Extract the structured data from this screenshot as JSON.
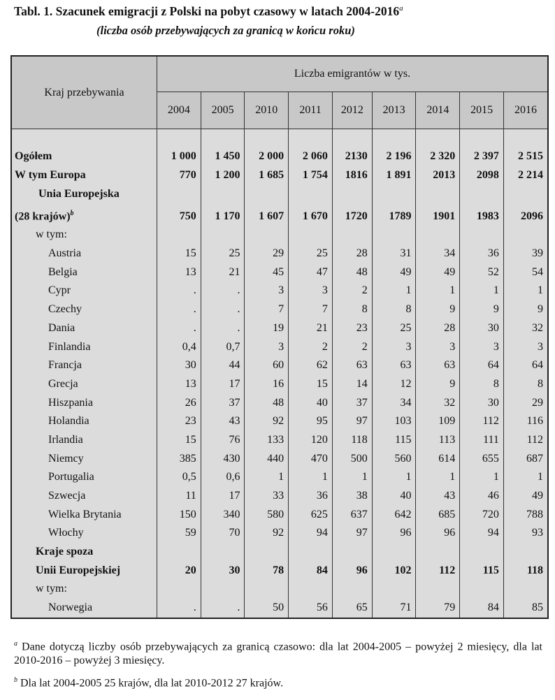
{
  "title": "Tabl. 1. Szacunek emigracji z Polski na pobyt czasowy w latach 2004-2016",
  "title_note": "a",
  "subtitle": "(liczba osób przebywających za granicą w końcu roku)",
  "header": {
    "row_label": "Kraj przebywania",
    "group_label": "Liczba emigrantów w tys.",
    "years": [
      "2004",
      "2005",
      "2010",
      "2011",
      "2012",
      "2013",
      "2014",
      "2015",
      "2016"
    ]
  },
  "rows": [
    {
      "label": "Ogółem",
      "bold": true,
      "indent": 0,
      "values": [
        "1 000",
        "1 450",
        "2 000",
        "2 060",
        "2130",
        "2 196",
        "2 320",
        "2 397",
        "2 515"
      ]
    },
    {
      "label": "W tym Europa",
      "bold": true,
      "indent": 0,
      "values": [
        "770",
        "1 200",
        "1 685",
        "1 754",
        "1816",
        "1 891",
        "2013",
        "2098",
        "2 214"
      ]
    },
    {
      "label": "Unia Europejska",
      "bold": true,
      "indent": 1,
      "values": []
    },
    {
      "label": "(28 krajów)",
      "note": "b",
      "bold": true,
      "indent": 0,
      "tall": true,
      "values": [
        "750",
        "1 170",
        "1 607",
        "1 670",
        "1720",
        "1789",
        "1901",
        "1983",
        "2096"
      ]
    },
    {
      "label": "w tym:",
      "indent": 2,
      "values": []
    },
    {
      "label": "Austria",
      "indent": 3,
      "values": [
        "15",
        "25",
        "29",
        "25",
        "28",
        "31",
        "34",
        "36",
        "39"
      ]
    },
    {
      "label": "Belgia",
      "indent": 3,
      "values": [
        "13",
        "21",
        "45",
        "47",
        "48",
        "49",
        "49",
        "52",
        "54"
      ]
    },
    {
      "label": "Cypr",
      "indent": 3,
      "values": [
        ".",
        ".",
        "3",
        "3",
        "2",
        "1",
        "1",
        "1",
        "1"
      ]
    },
    {
      "label": "Czechy",
      "indent": 3,
      "values": [
        ".",
        ".",
        "7",
        "7",
        "8",
        "8",
        "9",
        "9",
        "9"
      ]
    },
    {
      "label": "Dania",
      "indent": 3,
      "values": [
        ".",
        ".",
        "19",
        "21",
        "23",
        "25",
        "28",
        "30",
        "32"
      ]
    },
    {
      "label": "Finlandia",
      "indent": 3,
      "values": [
        "0,4",
        "0,7",
        "3",
        "2",
        "2",
        "3",
        "3",
        "3",
        "3"
      ]
    },
    {
      "label": "Francja",
      "indent": 3,
      "values": [
        "30",
        "44",
        "60",
        "62",
        "63",
        "63",
        "63",
        "64",
        "64"
      ]
    },
    {
      "label": "Grecja",
      "indent": 3,
      "values": [
        "13",
        "17",
        "16",
        "15",
        "14",
        "12",
        "9",
        "8",
        "8"
      ]
    },
    {
      "label": "Hiszpania",
      "indent": 3,
      "values": [
        "26",
        "37",
        "48",
        "40",
        "37",
        "34",
        "32",
        "30",
        "29"
      ]
    },
    {
      "label": "Holandia",
      "indent": 3,
      "values": [
        "23",
        "43",
        "92",
        "95",
        "97",
        "103",
        "109",
        "112",
        "116"
      ]
    },
    {
      "label": "Irlandia",
      "indent": 3,
      "values": [
        "15",
        "76",
        "133",
        "120",
        "118",
        "115",
        "113",
        "111",
        "112"
      ]
    },
    {
      "label": "Niemcy",
      "indent": 3,
      "values": [
        "385",
        "430",
        "440",
        "470",
        "500",
        "560",
        "614",
        "655",
        "687"
      ]
    },
    {
      "label": "Portugalia",
      "indent": 3,
      "values": [
        "0,5",
        "0,6",
        "1",
        "1",
        "1",
        "1",
        "1",
        "1",
        "1"
      ]
    },
    {
      "label": "Szwecja",
      "indent": 3,
      "values": [
        "11",
        "17",
        "33",
        "36",
        "38",
        "40",
        "43",
        "46",
        "49"
      ]
    },
    {
      "label": "Wielka Brytania",
      "indent": 3,
      "values": [
        "150",
        "340",
        "580",
        "625",
        "637",
        "642",
        "685",
        "720",
        "788"
      ]
    },
    {
      "label": "Włochy",
      "indent": 3,
      "values": [
        "59",
        "70",
        "92",
        "94",
        "97",
        "96",
        "96",
        "94",
        "93"
      ]
    },
    {
      "label": "Kraje spoza",
      "bold": true,
      "indent": 2,
      "values": []
    },
    {
      "label": "Unii Europejskiej",
      "bold": true,
      "indent": 2,
      "values": [
        "20",
        "30",
        "78",
        "84",
        "96",
        "102",
        "112",
        "115",
        "118"
      ]
    },
    {
      "label": "w tym:",
      "indent": 2,
      "values": []
    },
    {
      "label": "Norwegia",
      "indent": 3,
      "values": [
        ".",
        ".",
        "50",
        "56",
        "65",
        "71",
        "79",
        "84",
        "85"
      ]
    }
  ],
  "footnotes": [
    {
      "mark": "a",
      "text": " Dane dotyczą liczby osób przebywających za granicą czasowo: dla lat 2004-2005 – powyżej 2 miesięcy, dla lat 2010-2016 – powyżej 3 miesięcy."
    },
    {
      "mark": "b",
      "text": " Dla lat 2004-2005 25 krajów, dla lat 2010-2012 27 krajów."
    }
  ]
}
